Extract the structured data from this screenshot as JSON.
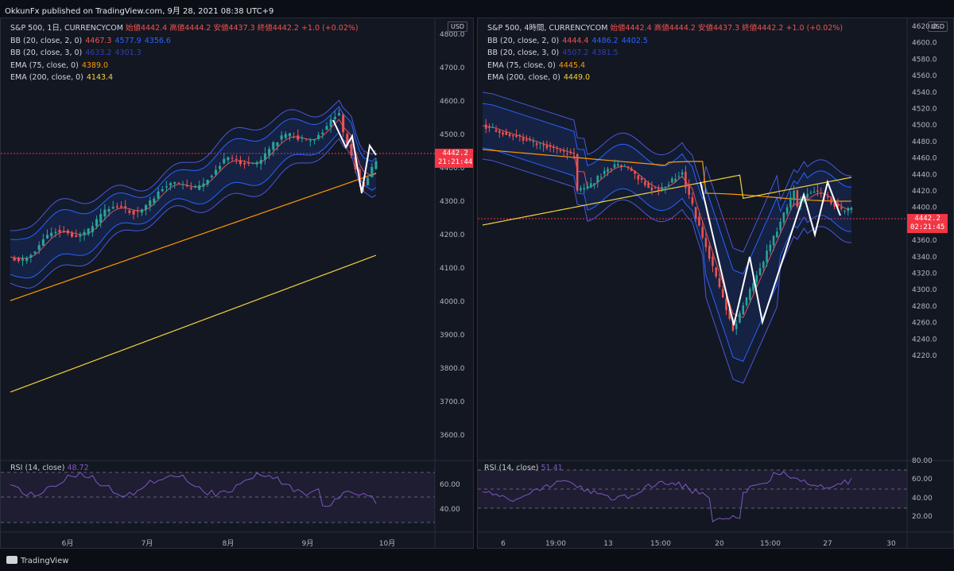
{
  "header": {
    "publisher_text": "OkkunFx published on TradingView.com, 9月 28, 2021 08:38 UTC+9"
  },
  "footer": {
    "brand": "TradingView"
  },
  "colors": {
    "bg": "#131722",
    "up": "#26a69a",
    "down": "#ef5350",
    "bb2": "#2962ff",
    "bb3": "#4a58d8",
    "ema75": "#ff9800",
    "ema200": "#f2d33c",
    "rsi": "#7e57c2",
    "price_line": "#f23645"
  },
  "left": {
    "legend": {
      "title": "S&P 500, 1日, CURRENCYCOM",
      "ohlc": "始値4442.4  高値4444.2  安値4437.3  終値4442.2  +1.0 (+0.02%)",
      "bb2": {
        "label": "BB (20, close, 2, 0)",
        "v1": "4467.3",
        "v2": "4577.9",
        "v3": "4356.6"
      },
      "bb3": {
        "label": "BB (20, close, 3, 0)",
        "v1": "4633.2",
        "v2": "4301.3"
      },
      "ema75": {
        "label": "EMA (75, close, 0)",
        "v": "4389.0"
      },
      "ema200": {
        "label": "EMA (200, close, 0)",
        "v": "4143.4"
      }
    },
    "currency": "USD",
    "price_axis": [
      "4800.0",
      "4700.0",
      "4600.0",
      "4500.0",
      "4400.0",
      "4300.0",
      "4200.0",
      "4100.0",
      "4000.0",
      "3900.0",
      "3800.0",
      "3700.0",
      "3600.0"
    ],
    "last_price": "4442.2",
    "countdown": "21:21:44",
    "rsi": {
      "label": "RSI (14, close)",
      "value": "48.72",
      "axis": [
        "60.00",
        "40.00"
      ]
    },
    "time_axis": [
      "6月",
      "7月",
      "8月",
      "9月",
      "10月"
    ]
  },
  "right": {
    "legend": {
      "title": "S&P 500, 4時間, CURRENCYCOM",
      "ohlc": "始値4442.4  高値4444.2  安値4437.3  終値4442.2  +1.0 (+0.02%)",
      "bb2": {
        "label": "BB (20, close, 2, 0)",
        "v1": "4444.4",
        "v2": "4486.2",
        "v3": "4402.5"
      },
      "bb3": {
        "label": "BB (20, close, 3, 0)",
        "v1": "4507.2",
        "v2": "4381.5"
      },
      "ema75": {
        "label": "EMA (75, close, 0)",
        "v": "4445.4"
      },
      "ema200": {
        "label": "EMA (200, close, 0)",
        "v": "4449.0"
      }
    },
    "currency": "USD",
    "price_axis": [
      "4620.0",
      "4600.0",
      "4580.0",
      "4560.0",
      "4540.0",
      "4520.0",
      "4500.0",
      "4480.0",
      "4460.0",
      "4440.0",
      "4420.0",
      "4400.0",
      "4380.0",
      "4360.0",
      "4340.0",
      "4320.0",
      "4300.0",
      "4280.0",
      "4260.0",
      "4240.0",
      "4220.0"
    ],
    "price_axis_cut": "46",
    "last_price": "4442.2",
    "countdown": "02:21:45",
    "rsi": {
      "label": "RSI (14, close)",
      "value": "51.41",
      "axis": [
        "80.00",
        "60.00",
        "40.00",
        "20.00"
      ]
    },
    "time_axis": [
      "6",
      "19:00",
      "13",
      "15:00",
      "20",
      "15:00",
      "27",
      "30"
    ]
  }
}
